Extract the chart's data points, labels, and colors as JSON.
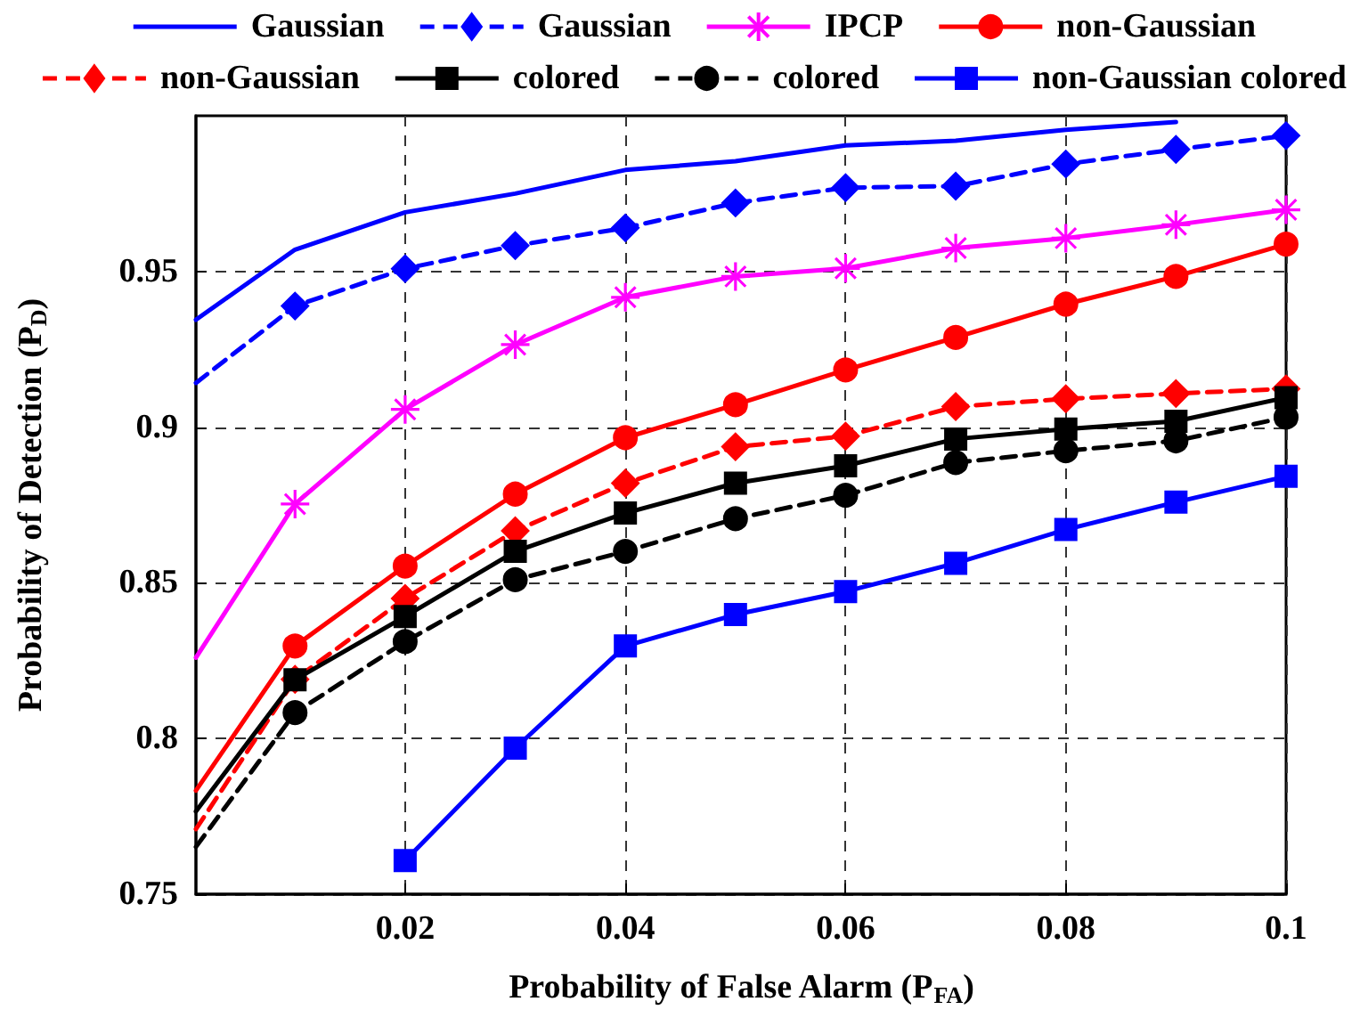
{
  "chart_data": {
    "type": "line",
    "xlabel": "Probability of False Alarm (P$_{FA}$)",
    "ylabel": "Probability of Detection (P$_{D}$)",
    "x": [
      0.001,
      0.01,
      0.02,
      0.03,
      0.04,
      0.05,
      0.06,
      0.07,
      0.08,
      0.09,
      0.1
    ],
    "xlim": [
      0.001,
      0.1
    ],
    "xticks": [
      0.02,
      0.04,
      0.06,
      0.08,
      0.1
    ],
    "ylim": [
      0.75,
      1
    ],
    "yticks": [
      0.75,
      0.8,
      0.85,
      0.9,
      0.95
    ],
    "grid": true,
    "legend": "top",
    "series": [
      {
        "name": "Gaussian",
        "color": "#0000ff",
        "line_style": "solid",
        "marker": "none",
        "values": [
          0.9345,
          0.957,
          0.969,
          0.975,
          0.9826,
          0.9854,
          0.9905,
          0.992,
          0.9955,
          0.998,
          null
        ]
      },
      {
        "name": "Gaussian",
        "color": "#0000ff",
        "line_style": "dashed",
        "marker": "diamond",
        "values": [
          0.9142,
          0.9389,
          0.9509,
          0.9583,
          0.964,
          0.972,
          0.9769,
          0.9774,
          0.9845,
          0.9892,
          0.9936
        ]
      },
      {
        "name": "IPCP",
        "color": "#ff00ff",
        "line_style": "solid",
        "marker": "star",
        "values": [
          0.826,
          0.8753,
          0.9057,
          0.9265,
          0.9417,
          0.9484,
          0.951,
          0.9575,
          0.9607,
          0.965,
          0.9698
        ]
      },
      {
        "name": "non-Gaussian",
        "color": "#ff0000",
        "line_style": "solid",
        "marker": "circle",
        "values": [
          0.7833,
          0.8297,
          0.8554,
          0.8785,
          0.8966,
          0.9072,
          0.9184,
          0.9288,
          0.9395,
          0.9484,
          0.9588
        ]
      },
      {
        "name": "non-Gaussian",
        "color": "#ff0000",
        "line_style": "dashed",
        "marker": "diamond",
        "values": [
          0.7709,
          0.819,
          0.845,
          0.8667,
          0.882,
          0.8937,
          0.8971,
          0.9066,
          0.9091,
          0.9108,
          0.9123
        ]
      },
      {
        "name": "colored",
        "color": "#000000",
        "line_style": "solid",
        "marker": "square",
        "values": [
          0.7766,
          0.8189,
          0.8392,
          0.8601,
          0.8724,
          0.882,
          0.8876,
          0.8962,
          0.8994,
          0.9019,
          0.9095
        ]
      },
      {
        "name": "colored",
        "color": "#000000",
        "line_style": "dashed",
        "marker": "circle",
        "values": [
          0.7652,
          0.8083,
          0.8311,
          0.851,
          0.8601,
          0.8706,
          0.8781,
          0.8886,
          0.8924,
          0.8956,
          0.9032
        ]
      },
      {
        "name": "non-Gaussian colored",
        "color": "#0000ff",
        "line_style": "solid",
        "marker": "square",
        "values": [
          null,
          null,
          0.7608,
          0.7969,
          0.8297,
          0.8398,
          0.8472,
          0.8563,
          0.8671,
          0.8759,
          0.8842
        ]
      }
    ]
  }
}
